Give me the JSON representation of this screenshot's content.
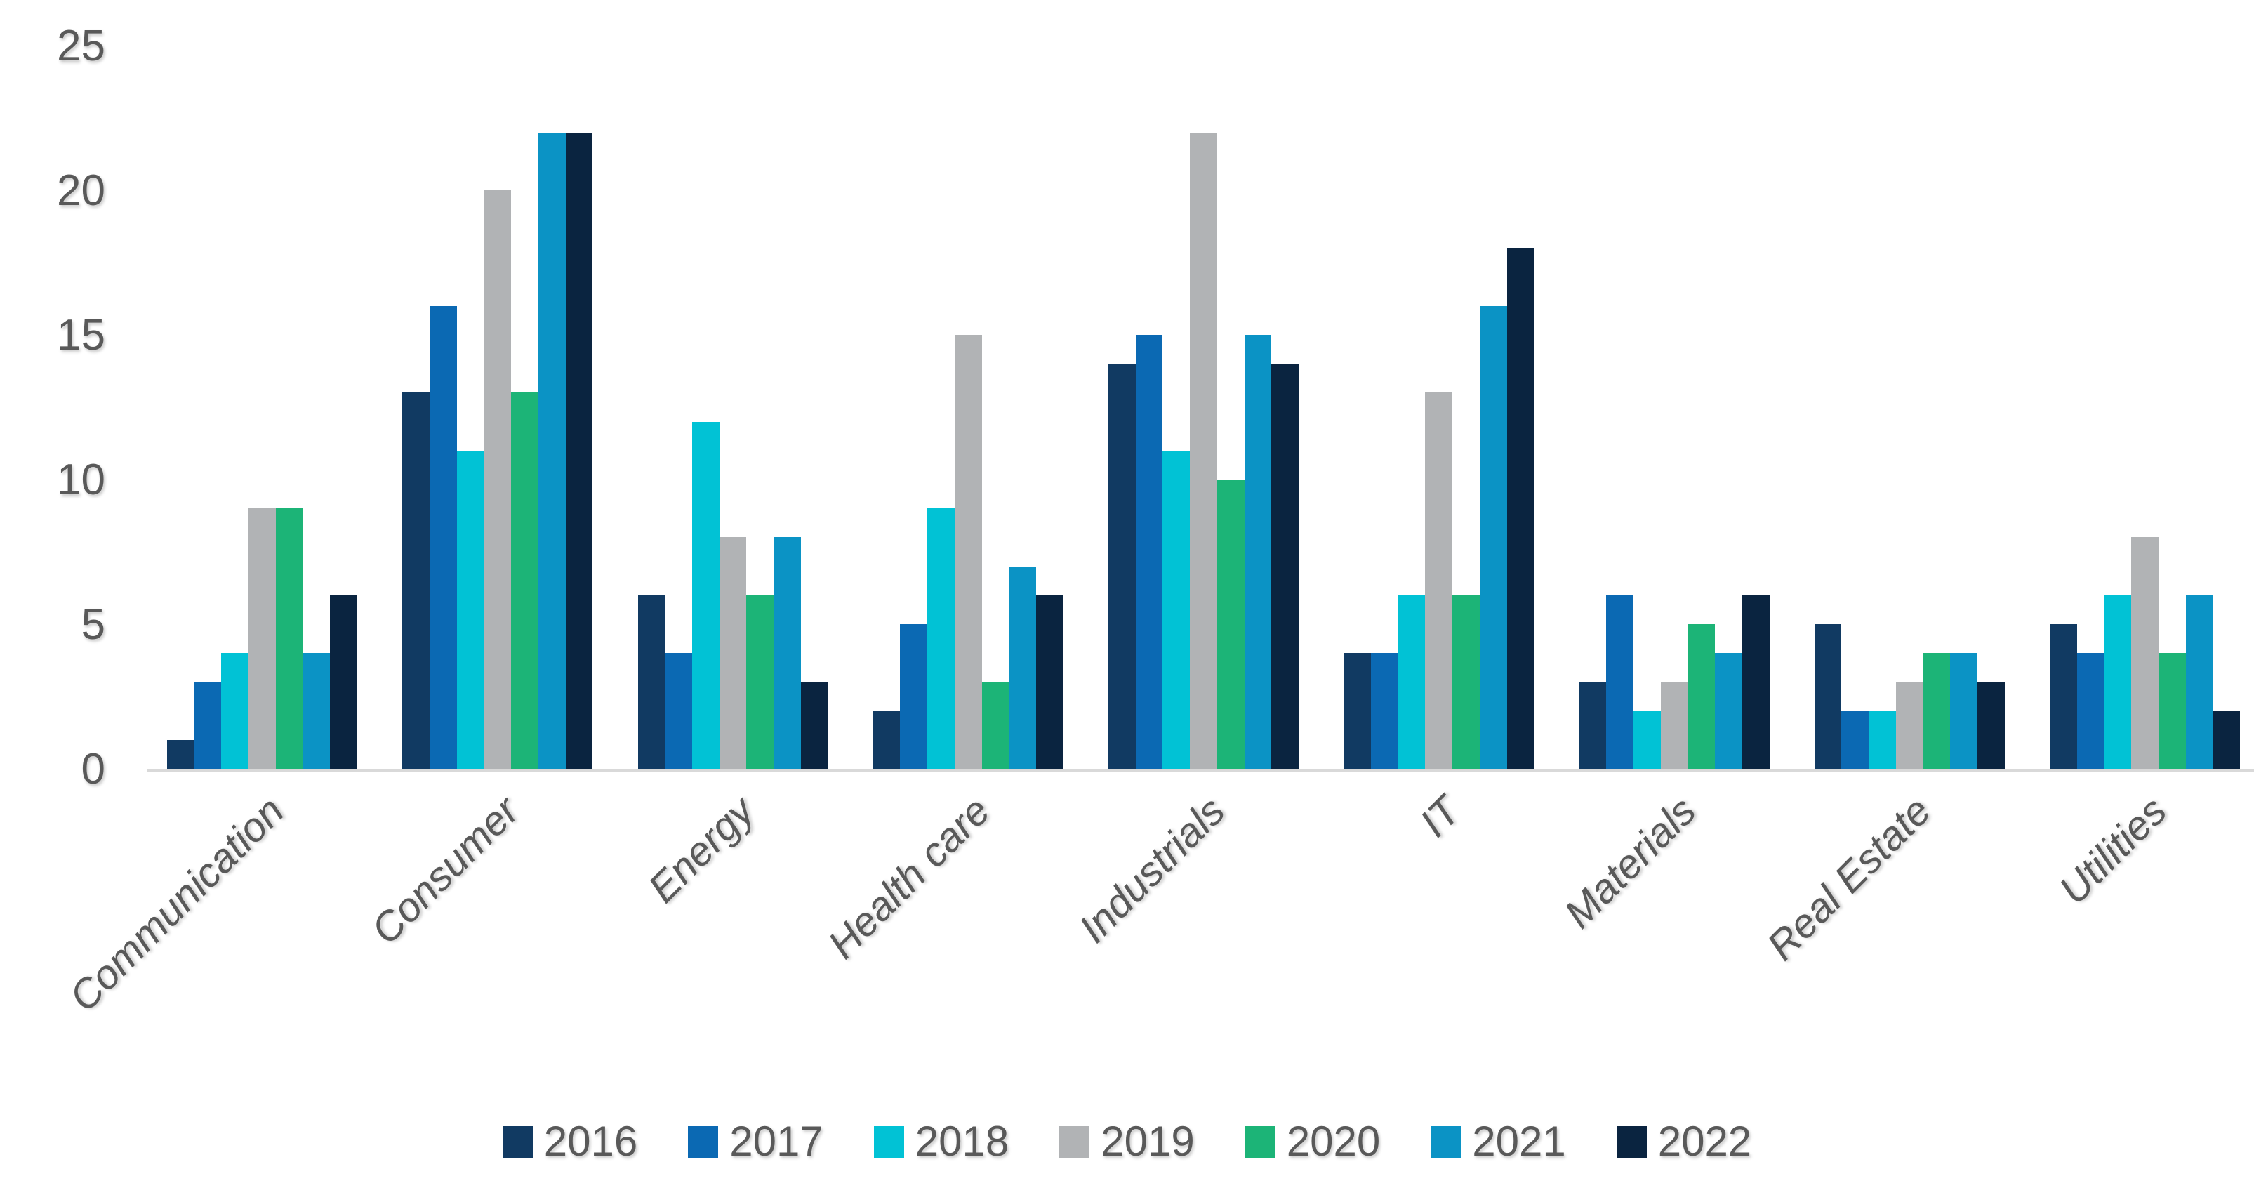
{
  "style": {
    "background": "#FFFFFF",
    "text_color": "#595959",
    "axis_line_color": "#D9D9D9"
  },
  "chart_data": {
    "type": "bar",
    "title": "",
    "xlabel": "",
    "ylabel": "",
    "grid": false,
    "legend_position": "bottom",
    "ylim": [
      0,
      25
    ],
    "yticks": [
      0,
      5,
      10,
      15,
      20,
      25
    ],
    "ytick_labels": [
      "0",
      "5",
      "10",
      "15",
      "20",
      "25"
    ],
    "categories": [
      "Communication",
      "Consumer",
      "Energy",
      "Health care",
      "Industrials",
      "IT",
      "Materials",
      "Real Estate",
      "Utilities"
    ],
    "series": [
      {
        "name": "2016",
        "color": "#113A62",
        "values": [
          1,
          13,
          6,
          2,
          14,
          4,
          3,
          5,
          5
        ]
      },
      {
        "name": "2017",
        "color": "#0B69B3",
        "values": [
          3,
          16,
          4,
          5,
          15,
          4,
          6,
          2,
          4
        ]
      },
      {
        "name": "2018",
        "color": "#01C2D5",
        "values": [
          4,
          11,
          12,
          9,
          11,
          6,
          2,
          2,
          6
        ]
      },
      {
        "name": "2019",
        "color": "#B1B3B5",
        "values": [
          9,
          20,
          8,
          15,
          22,
          13,
          3,
          3,
          8
        ]
      },
      {
        "name": "2020",
        "color": "#1CB477",
        "values": [
          9,
          13,
          6,
          3,
          10,
          6,
          5,
          4,
          4
        ]
      },
      {
        "name": "2021",
        "color": "#0B93C5",
        "values": [
          4,
          22,
          8,
          7,
          15,
          16,
          4,
          4,
          6
        ]
      },
      {
        "name": "2022",
        "color": "#0A2440",
        "values": [
          6,
          22,
          3,
          6,
          14,
          18,
          6,
          3,
          2
        ]
      }
    ]
  }
}
